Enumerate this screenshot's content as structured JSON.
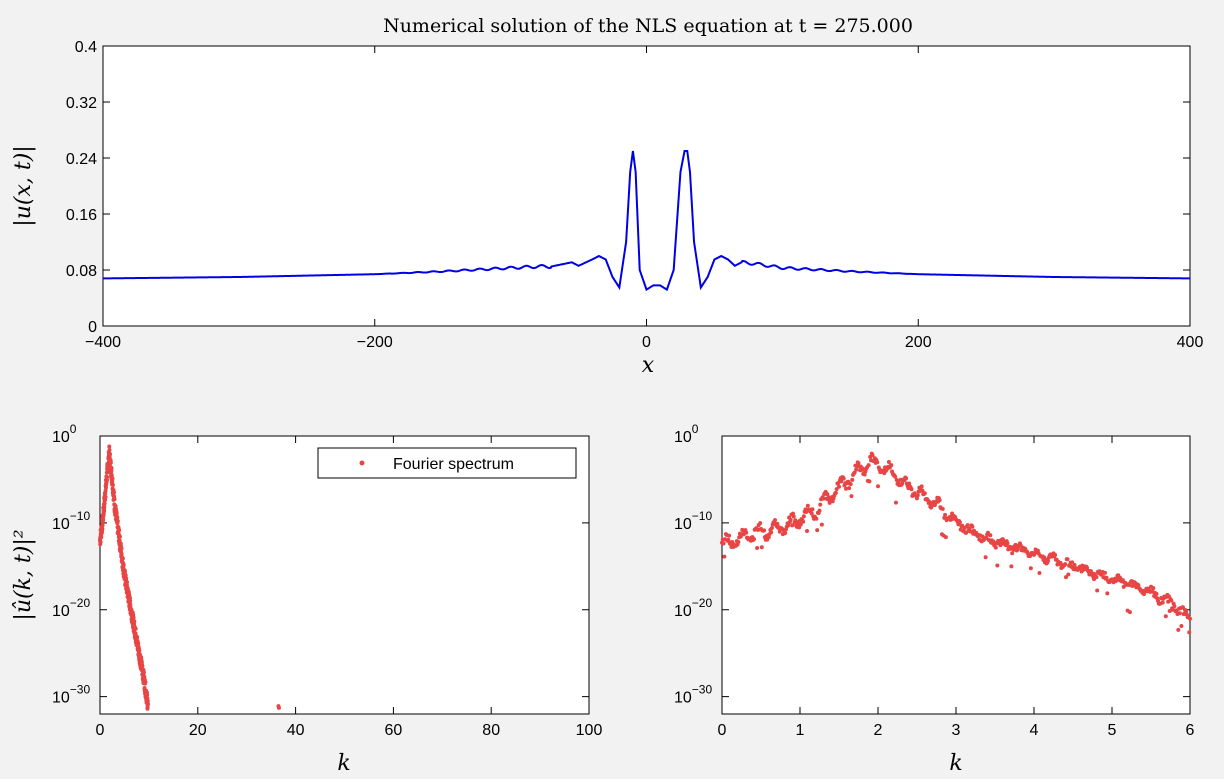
{
  "colors": {
    "line": "#0000e6",
    "dots": "#e84545",
    "background": "#f2f2f2"
  },
  "chart_data": [
    {
      "type": "line",
      "title": "Numerical solution of the NLS equation at t = 275.000",
      "xlabel": "x",
      "ylabel": "|u(x, t)|",
      "xlim": [
        -400,
        400
      ],
      "ylim": [
        0,
        0.4
      ],
      "xticks": [
        "−400",
        "−200",
        "0",
        "200",
        "400"
      ],
      "yticks": [
        "0",
        "0.08",
        "0.16",
        "0.24",
        "0.32",
        "0.4"
      ],
      "grid": false,
      "series": [
        {
          "x": [
            -400,
            -300,
            -200,
            -150,
            -120,
            -100,
            -80,
            -70,
            -60,
            -55,
            -50,
            -40,
            -35,
            -30,
            -25,
            -20,
            -15,
            -12,
            -10,
            -8,
            -5,
            0,
            5,
            10,
            15,
            20,
            25,
            28,
            30,
            32,
            35,
            40,
            45,
            50,
            55,
            60,
            65,
            70,
            80,
            100,
            120,
            150,
            200,
            300,
            400
          ],
          "y": [
            0.068,
            0.07,
            0.074,
            0.078,
            0.081,
            0.083,
            0.085,
            0.085,
            0.089,
            0.091,
            0.086,
            0.095,
            0.1,
            0.095,
            0.07,
            0.055,
            0.12,
            0.22,
            0.25,
            0.22,
            0.08,
            0.052,
            0.058,
            0.058,
            0.052,
            0.08,
            0.22,
            0.25,
            0.25,
            0.22,
            0.12,
            0.055,
            0.07,
            0.095,
            0.1,
            0.095,
            0.086,
            0.091,
            0.089,
            0.083,
            0.081,
            0.078,
            0.074,
            0.07,
            0.068
          ]
        }
      ]
    },
    {
      "type": "scatter",
      "xlabel": "k",
      "ylabel": "|û(k, t)|²",
      "xlim": [
        0,
        100
      ],
      "ylim_log10": [
        -32,
        0
      ],
      "xticks": [
        "0",
        "20",
        "40",
        "60",
        "80",
        "100"
      ],
      "yticks": [
        "10",
        "10",
        "10",
        "10"
      ],
      "ytick_exponents": [
        "0",
        "−10",
        "−20",
        "−30"
      ],
      "legend": {
        "label": "Fourier spectrum",
        "position": "top-right"
      },
      "series": [
        {
          "name": "Fourier spectrum",
          "k": [
            0,
            0.5,
            1,
            1.5,
            1.9,
            2.5,
            3,
            4,
            5,
            6,
            7,
            8,
            9,
            9.8,
            36.5
          ],
          "log10_power": [
            -12,
            -10,
            -7,
            -4,
            -2,
            -5,
            -8,
            -12,
            -16,
            -19,
            -22,
            -25,
            -28,
            -31,
            -31
          ]
        }
      ]
    },
    {
      "type": "scatter",
      "xlabel": "k",
      "ylabel": "",
      "xlim": [
        0,
        6
      ],
      "ylim_log10": [
        -32,
        0
      ],
      "xticks": [
        "0",
        "1",
        "2",
        "3",
        "4",
        "5",
        "6"
      ],
      "yticks": [
        "10",
        "10",
        "10",
        "10"
      ],
      "ytick_exponents": [
        "0",
        "−10",
        "−20",
        "−30"
      ],
      "series": [
        {
          "k": [
            0,
            0.3,
            0.6,
            0.9,
            1.2,
            1.5,
            1.8,
            1.9,
            2.1,
            2.4,
            2.7,
            3.0,
            3.3,
            3.6,
            4.0,
            4.5,
            5.0,
            5.5,
            5.8,
            6.0
          ],
          "log10_power": [
            -12.5,
            -11.5,
            -10.8,
            -10,
            -8.5,
            -6,
            -3.5,
            -3,
            -3.8,
            -6,
            -7.5,
            -10,
            -11.5,
            -12.5,
            -13.5,
            -15,
            -16.5,
            -18,
            -19.5,
            -21
          ]
        }
      ]
    }
  ]
}
